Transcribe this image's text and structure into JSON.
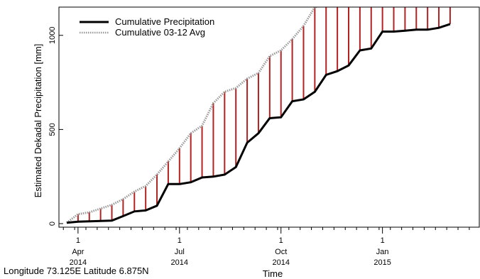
{
  "chart_data": {
    "type": "line",
    "xlabel": "Time",
    "ylabel": "Estimated Dekadal Precipitation [mm]",
    "ylim": [
      0,
      1150
    ],
    "yticks": [
      0,
      500,
      1000
    ],
    "xlim": [
      0,
      34
    ],
    "xticks": [
      {
        "x": 1,
        "day": "1",
        "month": "Apr",
        "year": "2014"
      },
      {
        "x": 10,
        "day": "1",
        "month": "Jul",
        "year": "2014"
      },
      {
        "x": 19,
        "day": "1",
        "month": "Oct",
        "year": "2014"
      },
      {
        "x": 28,
        "day": "1",
        "month": "Jan",
        "year": "2015"
      }
    ],
    "series": [
      {
        "name": "Cumulative Precipitation",
        "color": "#000000",
        "style": "solid",
        "x": [
          0,
          1,
          2,
          3,
          4,
          5,
          6,
          7,
          8,
          9,
          10,
          11,
          12,
          13,
          14,
          15,
          16,
          17,
          18,
          19,
          20,
          21,
          22,
          23,
          24,
          25,
          26,
          27,
          28,
          29,
          30,
          31,
          32,
          33,
          34
        ],
        "values": [
          5,
          10,
          12,
          14,
          16,
          40,
          65,
          70,
          95,
          210,
          210,
          220,
          245,
          250,
          260,
          300,
          430,
          480,
          560,
          565,
          650,
          660,
          700,
          790,
          810,
          840,
          920,
          930,
          1020,
          1020,
          1025,
          1030,
          1030,
          1040,
          1060
        ]
      },
      {
        "name": "Cumulative 03-12 Avg",
        "color": "#999999",
        "style": "dotted",
        "x": [
          0,
          1,
          2,
          3,
          4,
          5,
          6,
          7,
          8,
          9,
          10,
          11,
          12,
          13,
          14,
          15,
          16,
          17,
          18,
          19,
          20,
          21,
          22,
          23,
          24,
          25,
          26,
          27,
          28,
          29,
          30,
          31,
          32,
          33,
          34
        ],
        "values": [
          5,
          50,
          60,
          80,
          100,
          130,
          170,
          200,
          260,
          330,
          400,
          480,
          520,
          640,
          700,
          720,
          770,
          800,
          890,
          920,
          980,
          1050,
          1150,
          1160,
          1160,
          1160,
          1160,
          1160,
          1160,
          1160,
          1160,
          1160,
          1160,
          1160,
          1160
        ]
      }
    ],
    "difference_bars": {
      "color": "#b22222"
    },
    "grid": false,
    "legend": "top-left"
  },
  "footer": {
    "location": "Longitude 73.125E Latitude 6.875N"
  }
}
